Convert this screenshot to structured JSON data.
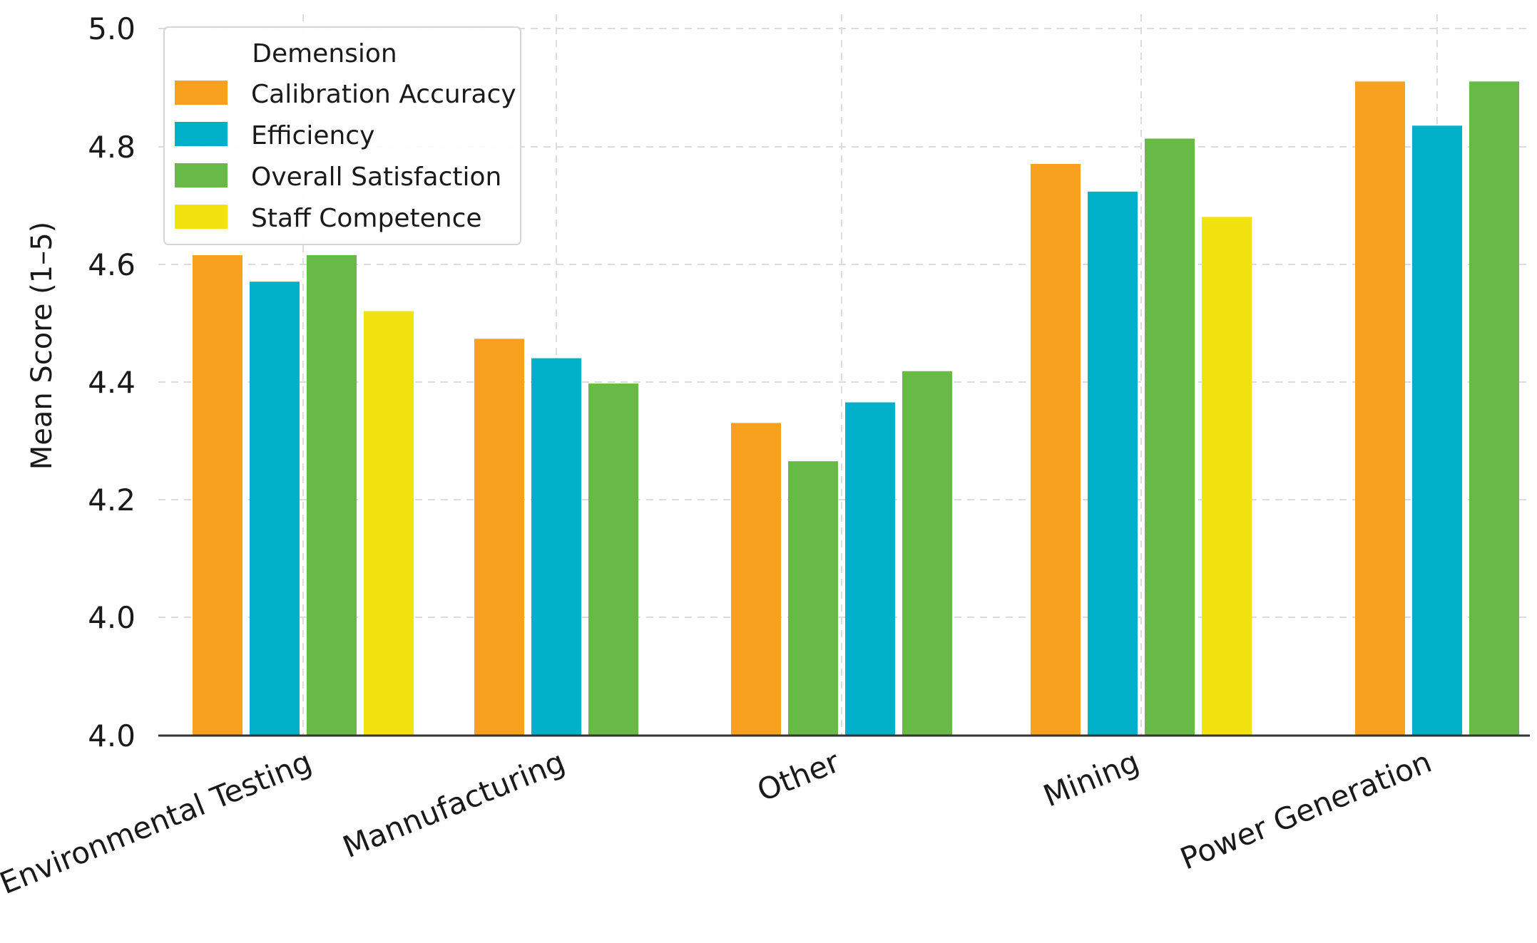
{
  "chart_data": {
    "type": "bar",
    "title": "",
    "xlabel": "",
    "ylabel": "Mean Score (1–5)",
    "ylim": [
      4.0,
      5.0
    ],
    "y_ticks": [
      4.0,
      4.2,
      4.4,
      4.6,
      4.8,
      5.0
    ],
    "y_tick_labels": [
      "4.0",
      "4.2",
      "4.4",
      "4.6",
      "4.8",
      "5.0"
    ],
    "grid": true,
    "legend": {
      "title": "Demension",
      "placement": "top-left"
    },
    "categories": [
      "Environmental Testing",
      "Mannufacturing",
      "Other",
      "Mining",
      "Power Generation"
    ],
    "series": [
      {
        "name": "Calibration Accuracy",
        "color": "#F7A11F",
        "values": [
          4.615,
          4.473,
          4.33,
          4.77,
          4.91
        ]
      },
      {
        "name": "Efficiency",
        "color": "#00B0C8",
        "values": [
          4.57,
          4.44,
          4.365,
          4.723,
          4.835
        ]
      },
      {
        "name": "Overall Satisfaction",
        "color": "#67BA45",
        "values": [
          4.615,
          4.397,
          4.418,
          4.813,
          4.91
        ]
      },
      {
        "name": "Staff Competence",
        "color": "#F2E20F",
        "values": [
          4.52,
          null,
          null,
          4.68,
          null
        ]
      }
    ],
    "bar_order": [
      [
        "Calibration Accuracy",
        "Efficiency",
        "Overall Satisfaction",
        "Staff Competence"
      ],
      [
        "Calibration Accuracy",
        "Efficiency",
        "Overall Satisfaction"
      ],
      [
        "Calibration Accuracy",
        "Overall Satisfaction",
        "Efficiency",
        "Overall Satisfaction"
      ],
      [
        "Calibration Accuracy",
        "Efficiency",
        "Overall Satisfaction",
        "Staff Competence"
      ],
      [
        "Calibration Accuracy",
        "Efficiency",
        "Overall Satisfaction"
      ]
    ],
    "extra_bars": [
      {
        "category": "Other",
        "series": "Overall Satisfaction",
        "value": 4.265
      }
    ],
    "visible_tick_labels": [
      "4.0",
      "4.0",
      "4.2",
      "4.4",
      "4.6",
      "4.8",
      "5.0"
    ]
  }
}
